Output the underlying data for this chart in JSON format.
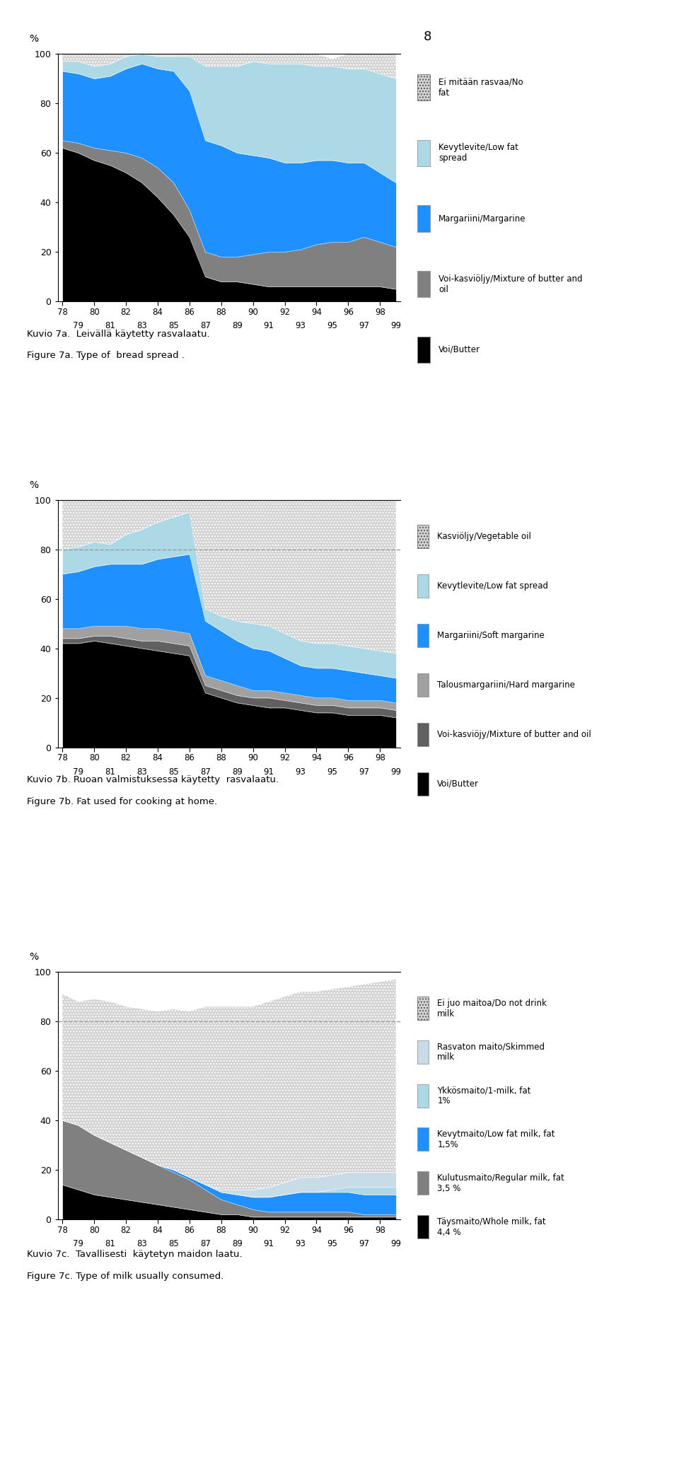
{
  "page_number": "8",
  "chart_a": {
    "title_fi": "Kuvio 7a.  Leivällä käytetty rasvalaatu.",
    "title_en": "Figure 7a. Type of  bread spread .",
    "ylabel": "%",
    "years": [
      78,
      79,
      80,
      81,
      82,
      83,
      84,
      85,
      86,
      87,
      88,
      89,
      90,
      91,
      92,
      93,
      94,
      95,
      96,
      97,
      98,
      99
    ],
    "series_order": [
      "Voi/Butter",
      "Voi-kasviöljy/Mixture",
      "Margariini/Margarine",
      "Kevytlevite/Low fat spread",
      "Ei mitään rasvaa/No fat"
    ],
    "series": {
      "Voi/Butter": [
        62,
        60,
        57,
        55,
        52,
        48,
        42,
        35,
        26,
        10,
        8,
        8,
        7,
        6,
        6,
        6,
        6,
        6,
        6,
        6,
        6,
        5
      ],
      "Voi-kasviöljy/Mixture": [
        3,
        4,
        5,
        6,
        8,
        10,
        12,
        13,
        11,
        10,
        10,
        10,
        12,
        14,
        14,
        15,
        17,
        18,
        18,
        20,
        18,
        17
      ],
      "Margariini/Margarine": [
        28,
        28,
        28,
        30,
        34,
        38,
        40,
        45,
        48,
        45,
        45,
        42,
        40,
        38,
        36,
        35,
        34,
        33,
        32,
        30,
        28,
        26
      ],
      "Kevytlevite/Low fat spread": [
        4,
        5,
        5,
        5,
        5,
        4,
        5,
        6,
        14,
        30,
        32,
        35,
        38,
        38,
        40,
        40,
        38,
        38,
        38,
        38,
        40,
        42
      ],
      "Ei mitään rasvaa/No fat": [
        3,
        3,
        5,
        4,
        1,
        0,
        1,
        1,
        1,
        5,
        5,
        5,
        3,
        4,
        4,
        4,
        5,
        3,
        6,
        6,
        8,
        10
      ]
    },
    "colors": {
      "Voi/Butter": "#000000",
      "Voi-kasviöljy/Mixture": "#808080",
      "Margariini/Margarine": "#1e90ff",
      "Kevytlevite/Low fat spread": "#add8e6",
      "Ei mitään rasvaa/No fat": "#d3d3d3"
    },
    "hatch": {
      "Ei mitään rasvaa/No fat": "...."
    },
    "legend_items": [
      {
        "label": "Ei mitään rasvaa/No\nfat",
        "key": "Ei mitään rasvaa/No fat",
        "hatch": "...."
      },
      {
        "label": "Kevytlevite/Low fat\nspread",
        "key": "Kevytlevite/Low fat spread",
        "hatch": null
      },
      {
        "label": "Margariini/Margarine",
        "key": "Margariini/Margarine",
        "hatch": null
      },
      {
        "label": "Voi-kasviöljy/Mixture of butter and\noil",
        "key": "Voi-kasviöljy/Mixture",
        "hatch": null
      },
      {
        "label": "Voi/Butter",
        "key": "Voi/Butter",
        "hatch": null
      }
    ],
    "dashed_line": null
  },
  "chart_b": {
    "title_fi": "Kuvio 7b. Ruoan valmistuksessa käytetty  rasvalaatu.",
    "title_en": "Figure 7b. Fat used for cooking at home.",
    "ylabel": "%",
    "years": [
      78,
      79,
      80,
      81,
      82,
      83,
      84,
      85,
      86,
      87,
      88,
      89,
      90,
      91,
      92,
      93,
      94,
      95,
      96,
      97,
      98,
      99
    ],
    "series_order": [
      "Voi/Butter",
      "Voi-kasviöjy/Mixture",
      "Talousmargariini/Hard margarine",
      "Margariini/Soft margarine",
      "Kevytlevite/Low fat spread",
      "Kasviöljy/Vegetable oil"
    ],
    "series": {
      "Voi/Butter": [
        42,
        42,
        43,
        42,
        41,
        40,
        39,
        38,
        37,
        22,
        20,
        18,
        17,
        16,
        16,
        15,
        14,
        14,
        13,
        13,
        13,
        12
      ],
      "Voi-kasviöjy/Mixture": [
        2,
        2,
        2,
        3,
        3,
        3,
        4,
        4,
        4,
        3,
        3,
        3,
        3,
        4,
        3,
        3,
        3,
        3,
        3,
        3,
        3,
        3
      ],
      "Talousmargariini/Hard margarine": [
        4,
        4,
        4,
        4,
        5,
        5,
        5,
        5,
        5,
        4,
        4,
        4,
        3,
        3,
        3,
        3,
        3,
        3,
        3,
        3,
        3,
        3
      ],
      "Margariini/Soft margarine": [
        22,
        23,
        24,
        25,
        25,
        26,
        28,
        30,
        32,
        22,
        20,
        18,
        17,
        16,
        14,
        12,
        12,
        12,
        12,
        11,
        10,
        10
      ],
      "Kevytlevite/Low fat spread": [
        10,
        10,
        10,
        8,
        12,
        14,
        15,
        16,
        17,
        5,
        6,
        8,
        10,
        10,
        10,
        10,
        10,
        10,
        10,
        10,
        10,
        10
      ],
      "Kasviöljy/Vegetable oil": [
        20,
        19,
        17,
        18,
        14,
        12,
        9,
        7,
        5,
        44,
        47,
        49,
        50,
        51,
        54,
        57,
        58,
        59,
        59,
        60,
        61,
        62
      ]
    },
    "colors": {
      "Voi/Butter": "#000000",
      "Voi-kasviöjy/Mixture": "#606060",
      "Talousmargariini/Hard margarine": "#a0a0a0",
      "Margariini/Soft margarine": "#1e90ff",
      "Kevytlevite/Low fat spread": "#add8e6",
      "Kasviöljy/Vegetable oil": "#d3d3d3"
    },
    "hatch": {
      "Kasviöljy/Vegetable oil": "...."
    },
    "dashed_line": 80,
    "legend_items": [
      {
        "label": "Kasviöljy/Vegetable oil",
        "key": "Kasviöljy/Vegetable oil",
        "hatch": "...."
      },
      {
        "label": "Kevytlevite/Low fat spread",
        "key": "Kevytlevite/Low fat spread",
        "hatch": null
      },
      {
        "label": "Margariini/Soft margarine",
        "key": "Margariini/Soft margarine",
        "hatch": null
      },
      {
        "label": "Talousmargariini/Hard margarine",
        "key": "Talousmargariini/Hard margarine",
        "hatch": null
      },
      {
        "label": "Voi-kasviöjy/Mixture of butter and oil",
        "key": "Voi-kasviöjy/Mixture",
        "hatch": null
      },
      {
        "label": "Voi/Butter",
        "key": "Voi/Butter",
        "hatch": null
      }
    ]
  },
  "chart_c": {
    "title_fi": "Kuvio 7c.  Tavallisesti  käytetyn maidon laatu.",
    "title_en": "Figure 7c. Type of milk usually consumed.",
    "ylabel": "%",
    "years": [
      78,
      79,
      80,
      81,
      82,
      83,
      84,
      85,
      86,
      87,
      88,
      89,
      90,
      91,
      92,
      93,
      94,
      95,
      96,
      97,
      98,
      99
    ],
    "series_order": [
      "Täysmaito/Whole milk",
      "Kulutusmaito/Regular milk",
      "Kevytmaito/Low fat milk",
      "Ykkösmaito/1-milk",
      "Rasvaton maito/Skimmed milk",
      "Ei juo maitoa/Do not drink milk"
    ],
    "series": {
      "Täysmaito/Whole milk": [
        14,
        12,
        10,
        9,
        8,
        7,
        6,
        5,
        4,
        3,
        2,
        2,
        1,
        1,
        1,
        1,
        1,
        1,
        1,
        1,
        1,
        1
      ],
      "Kulutusmaito/Regular milk": [
        26,
        26,
        24,
        22,
        20,
        18,
        16,
        14,
        12,
        9,
        6,
        4,
        3,
        2,
        2,
        2,
        2,
        2,
        2,
        1,
        1,
        1
      ],
      "Kevytmaito/Low fat milk": [
        0,
        0,
        0,
        0,
        0,
        0,
        0,
        1,
        1,
        2,
        3,
        4,
        5,
        6,
        7,
        8,
        8,
        8,
        8,
        8,
        8,
        8
      ],
      "Ykkösmaito/1-milk": [
        0,
        0,
        0,
        0,
        0,
        0,
        0,
        0,
        0,
        0,
        0,
        0,
        0,
        0,
        0,
        0,
        0,
        1,
        2,
        3,
        3,
        3
      ],
      "Rasvaton maito/Skimmed milk": [
        0,
        0,
        0,
        0,
        0,
        0,
        0,
        0,
        0,
        0,
        1,
        2,
        3,
        4,
        5,
        6,
        6,
        6,
        6,
        6,
        6,
        6
      ],
      "Ei juo maitoa/Do not drink milk": [
        51,
        50,
        55,
        57,
        58,
        60,
        62,
        65,
        67,
        72,
        74,
        74,
        74,
        75,
        75,
        75,
        75,
        75,
        75,
        76,
        77,
        78
      ]
    },
    "colors": {
      "Täysmaito/Whole milk": "#000000",
      "Kulutusmaito/Regular milk": "#808080",
      "Kevytmaito/Low fat milk": "#1e90ff",
      "Ykkösmaito/1-milk": "#add8e6",
      "Rasvaton maito/Skimmed milk": "#c8dce8",
      "Ei juo maitoa/Do not drink milk": "#d3d3d3"
    },
    "hatch": {
      "Ei juo maitoa/Do not drink milk": "...."
    },
    "dashed_line": 80,
    "legend_items": [
      {
        "label": "Ei juo maitoa/Do not drink\nmilk",
        "key": "Ei juo maitoa/Do not drink milk",
        "hatch": "...."
      },
      {
        "label": "Rasvaton maito/Skimmed\nmilk",
        "key": "Rasvaton maito/Skimmed milk",
        "hatch": null
      },
      {
        "label": "Ykkösmaito/1-milk, fat\n1%",
        "key": "Ykkösmaito/1-milk",
        "hatch": null
      },
      {
        "label": "Kevytmaito/Low fat milk, fat\n1,5%",
        "key": "Kevytmaito/Low fat milk",
        "hatch": null
      },
      {
        "label": "Kulutusmaito/Regular milk, fat\n3,5 %",
        "key": "Kulutusmaito/Regular milk",
        "hatch": null
      },
      {
        "label": "Täysmaito/Whole milk, fat\n4,4 %",
        "key": "Täysmaito/Whole milk",
        "hatch": null
      }
    ]
  }
}
